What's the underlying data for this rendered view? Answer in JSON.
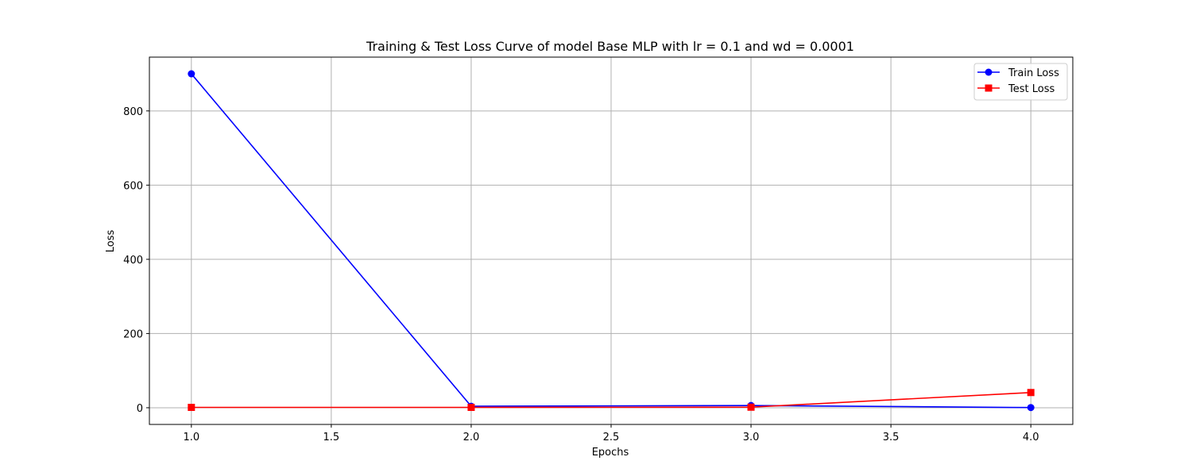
{
  "chart_data": {
    "type": "line",
    "title": "Training & Test Loss Curve of model Base MLP with lr = 0.1 and wd = 0.0001",
    "xlabel": "Epochs",
    "ylabel": "Loss",
    "x": [
      1.0,
      2.0,
      3.0,
      4.0
    ],
    "xlim": [
      0.85,
      4.15
    ],
    "ylim": [
      -45,
      945
    ],
    "xticks": [
      1.0,
      1.5,
      2.0,
      2.5,
      3.0,
      3.5,
      4.0
    ],
    "xtick_labels": [
      "1.0",
      "1.5",
      "2.0",
      "2.5",
      "3.0",
      "3.5",
      "4.0"
    ],
    "yticks": [
      0,
      200,
      400,
      600,
      800
    ],
    "ytick_labels": [
      "0",
      "200",
      "400",
      "600",
      "800"
    ],
    "grid": true,
    "legend": "top-right",
    "series": [
      {
        "name": "Train Loss",
        "color": "#0000ff",
        "marker": "circle",
        "values": [
          900,
          4,
          6,
          0.5
        ]
      },
      {
        "name": "Test Loss",
        "color": "#ff0000",
        "marker": "square",
        "values": [
          1,
          1,
          1.5,
          41
        ]
      }
    ]
  }
}
